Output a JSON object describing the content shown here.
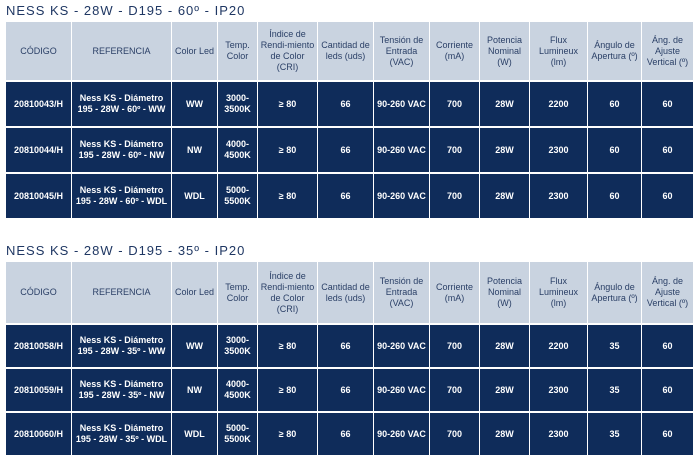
{
  "headers": [
    "CÓDIGO",
    "REFERENCIA",
    "Color Led",
    "Temp. Color",
    "Índice de Rendi-miento de Color (CRI)",
    "Cantidad de leds (uds)",
    "Tensión de Entrada (VAC)",
    "Corriente (mA)",
    "Potencia Nominal (W)",
    "Flux Lumineux (lm)",
    "Ángulo de Apertura (º)",
    "Áng. de Ajuste Vertical (º)"
  ],
  "tables": [
    {
      "title": "NESS KS - 28W - D195 - 60º - IP20",
      "rows": [
        {
          "codigo": "20810043/H",
          "referencia": "Ness KS - Diámetro 195 - 28W - 60º - WW",
          "color_led": "WW",
          "temp": "3000-3500K",
          "cri": "≥ 80",
          "leds": "66",
          "tension": "90-260 VAC",
          "corriente": "700",
          "potencia": "28W",
          "flux": "2200",
          "apertura": "60",
          "ajuste": "60"
        },
        {
          "codigo": "20810044/H",
          "referencia": "Ness KS - Diámetro 195 - 28W - 60º - NW",
          "color_led": "NW",
          "temp": "4000-4500K",
          "cri": "≥ 80",
          "leds": "66",
          "tension": "90-260 VAC",
          "corriente": "700",
          "potencia": "28W",
          "flux": "2300",
          "apertura": "60",
          "ajuste": "60"
        },
        {
          "codigo": "20810045/H",
          "referencia": "Ness KS - Diámetro 195 - 28W - 60º - WDL",
          "color_led": "WDL",
          "temp": "5000-5500K",
          "cri": "≥ 80",
          "leds": "66",
          "tension": "90-260 VAC",
          "corriente": "700",
          "potencia": "28W",
          "flux": "2300",
          "apertura": "60",
          "ajuste": "60"
        }
      ]
    },
    {
      "title": "NESS KS - 28W - D195 - 35º - IP20",
      "rows": [
        {
          "codigo": "20810058/H",
          "referencia": "Ness KS - Diámetro 195 - 28W - 35º - WW",
          "color_led": "WW",
          "temp": "3000-3500K",
          "cri": "≥ 80",
          "leds": "66",
          "tension": "90-260 VAC",
          "corriente": "700",
          "potencia": "28W",
          "flux": "2200",
          "apertura": "35",
          "ajuste": "60"
        },
        {
          "codigo": "20810059/H",
          "referencia": "Ness KS - Diámetro 195 - 28W - 35º - NW",
          "color_led": "NW",
          "temp": "4000-4500K",
          "cri": "≥ 80",
          "leds": "66",
          "tension": "90-260 VAC",
          "corriente": "700",
          "potencia": "28W",
          "flux": "2300",
          "apertura": "35",
          "ajuste": "60"
        },
        {
          "codigo": "20810060/H",
          "referencia": "Ness KS - Diámetro 195 - 28W - 35º - WDL",
          "color_led": "WDL",
          "temp": "5000-5500K",
          "cri": "≥ 80",
          "leds": "66",
          "tension": "90-260 VAC",
          "corriente": "700",
          "potencia": "28W",
          "flux": "2300",
          "apertura": "35",
          "ajuste": "60"
        }
      ]
    }
  ],
  "colors": {
    "header_bg": "#c9d3e0",
    "row_bg": "#0f2c5a",
    "title": "#1f3763"
  }
}
